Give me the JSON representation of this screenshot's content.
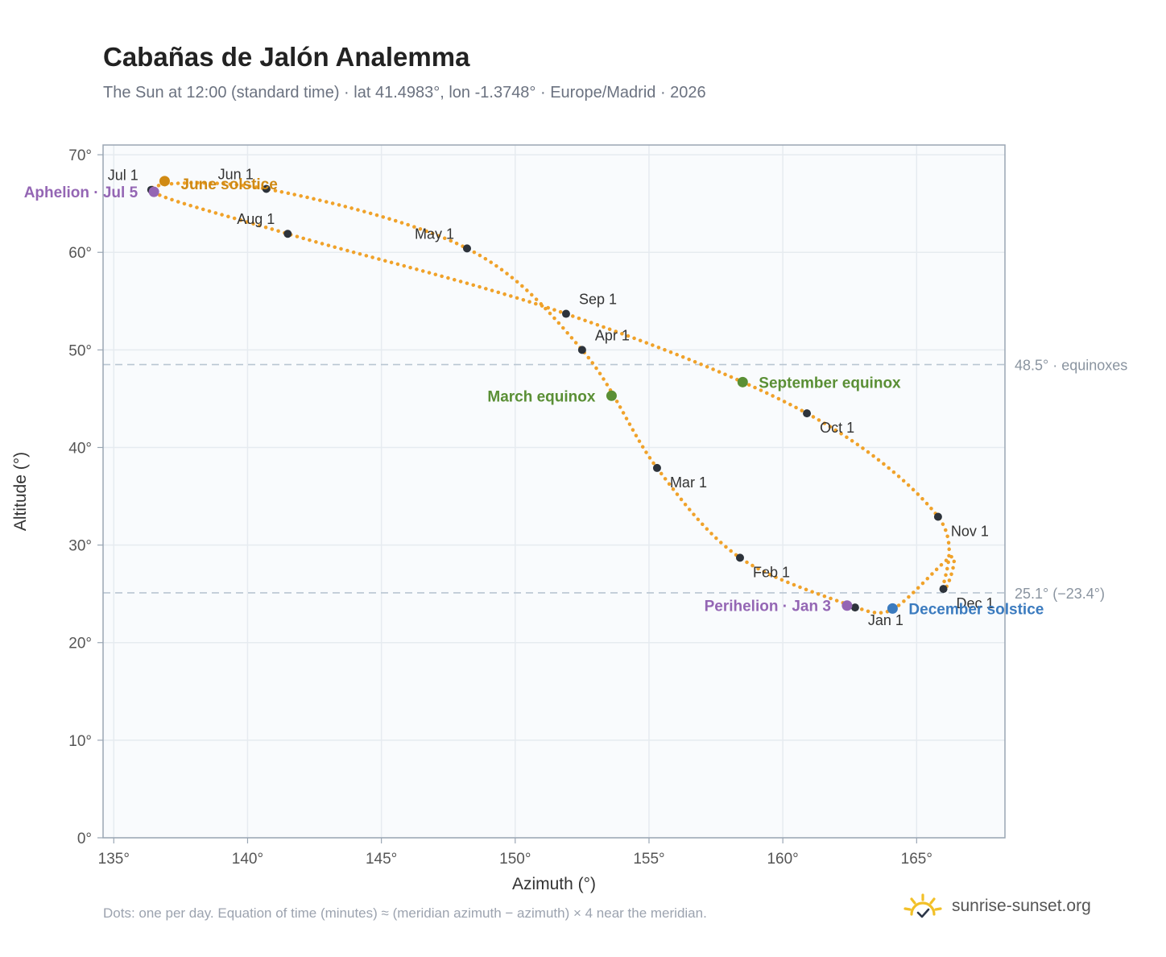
{
  "header": {
    "title": "Cabañas de Jalón Analemma",
    "subtitle": "The Sun at 12:00 (standard time) · lat 41.4983°, lon -1.3748° · Europe/Madrid · 2026"
  },
  "footer": {
    "note": "Dots: one per day. Equation of time (minutes) ≈ (meridian azimuth − azimuth) × 4 near the meridian.",
    "brand": "sunrise-sunset.org"
  },
  "colors": {
    "curve": "#f0a22a",
    "month_marker": "#2d333b",
    "equinox": "#5a8f35",
    "june_solstice": "#d08a14",
    "december_solstice": "#3b7bbf",
    "apsis": "#9466b4",
    "grid": "#e6ebf0",
    "plot_bg": "#f9fbfd",
    "reference_line": "#b9c6d2"
  },
  "chart_data": {
    "type": "scatter",
    "xlabel": "Azimuth (°)",
    "ylabel": "Altitude (°)",
    "xlim": [
      134.6,
      168.3
    ],
    "ylim": [
      0,
      71
    ],
    "x_ticks": [
      135,
      140,
      145,
      150,
      155,
      160,
      165
    ],
    "y_ticks": [
      0,
      10,
      20,
      30,
      40,
      50,
      60,
      70
    ],
    "tick_suffix": "°",
    "grid": true,
    "month_markers": [
      {
        "label": "Jan 1",
        "az": 162.7,
        "alt": 23.6
      },
      {
        "label": "Feb 1",
        "az": 158.4,
        "alt": 28.7
      },
      {
        "label": "Mar 1",
        "az": 155.3,
        "alt": 37.9
      },
      {
        "label": "Apr 1",
        "az": 152.5,
        "alt": 50.0
      },
      {
        "label": "May 1",
        "az": 148.2,
        "alt": 60.4
      },
      {
        "label": "Jun 1",
        "az": 140.7,
        "alt": 66.5
      },
      {
        "label": "Jul 1",
        "az": 136.4,
        "alt": 66.4
      },
      {
        "label": "Aug 1",
        "az": 141.5,
        "alt": 61.9
      },
      {
        "label": "Sep 1",
        "az": 151.9,
        "alt": 53.7
      },
      {
        "label": "Oct 1",
        "az": 160.9,
        "alt": 43.5
      },
      {
        "label": "Nov 1",
        "az": 165.8,
        "alt": 32.9
      },
      {
        "label": "Dec 1",
        "az": 166.0,
        "alt": 25.5
      }
    ],
    "events": [
      {
        "label": "March equinox",
        "az": 153.6,
        "alt": 45.3,
        "color_key": "equinox"
      },
      {
        "label": "September equinox",
        "az": 158.5,
        "alt": 46.7,
        "color_key": "equinox"
      },
      {
        "label": "June solstice",
        "az": 136.9,
        "alt": 67.3,
        "color_key": "june_solstice"
      },
      {
        "label": "December solstice",
        "az": 164.1,
        "alt": 23.5,
        "color_key": "december_solstice"
      },
      {
        "label": "Perihelion · Jan 3",
        "az": 162.4,
        "alt": 23.8,
        "color_key": "apsis"
      },
      {
        "label": "Aphelion · Jul 5",
        "az": 136.5,
        "alt": 66.2,
        "color_key": "apsis"
      }
    ],
    "reference_lines": [
      {
        "alt": 48.5,
        "label": "48.5° · equinoxes"
      },
      {
        "alt": 25.1,
        "label": "25.1° (−23.4°)"
      }
    ]
  }
}
